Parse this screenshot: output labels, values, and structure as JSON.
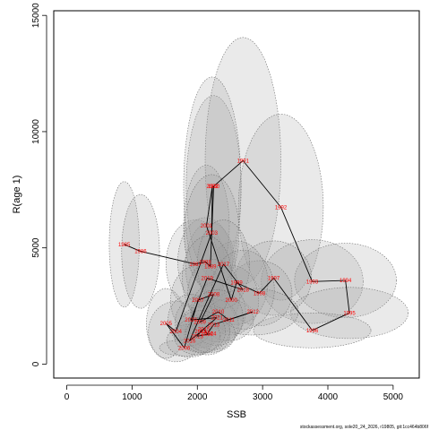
{
  "chart_data": {
    "type": "scatter",
    "xlabel": "SSB",
    "ylabel": "R(age 1)",
    "xlim": [
      -200,
      5400
    ],
    "ylim": [
      -600,
      15200
    ],
    "xticks": [
      0,
      1000,
      2000,
      3000,
      4000,
      5000
    ],
    "yticks": [
      0,
      5000,
      10000,
      15000
    ],
    "x_tick_labels": [
      "0",
      "1000",
      "2000",
      "3000",
      "4000",
      "5000"
    ],
    "y_tick_labels": [
      "0",
      "5000",
      "10000",
      "15000"
    ],
    "grid": false,
    "points": [
      {
        "year": "1985",
        "x": 880,
        "y": 5150
      },
      {
        "year": "1986",
        "x": 1130,
        "y": 4850
      },
      {
        "year": "1987",
        "x": 1970,
        "y": 4300
      },
      {
        "year": "1988",
        "x": 2120,
        "y": 4400
      },
      {
        "year": "1989",
        "x": 2200,
        "y": 4200
      },
      {
        "year": "1990",
        "x": 2250,
        "y": 7650
      },
      {
        "year": "1991",
        "x": 2700,
        "y": 8750
      },
      {
        "year": "1992",
        "x": 3280,
        "y": 6750
      },
      {
        "year": "1993",
        "x": 3760,
        "y": 3550
      },
      {
        "year": "1994",
        "x": 4270,
        "y": 3600
      },
      {
        "year": "1995",
        "x": 4330,
        "y": 2200
      },
      {
        "year": "1996",
        "x": 3760,
        "y": 1450
      },
      {
        "year": "1997",
        "x": 3170,
        "y": 3700
      },
      {
        "year": "1998",
        "x": 2950,
        "y": 3050
      },
      {
        "year": "1999",
        "x": 2600,
        "y": 3500
      },
      {
        "year": "2000",
        "x": 2520,
        "y": 2750
      },
      {
        "year": "2001",
        "x": 2140,
        "y": 5950
      },
      {
        "year": "2002",
        "x": 2230,
        "y": 7650
      },
      {
        "year": "2003",
        "x": 2220,
        "y": 5650
      },
      {
        "year": "2004",
        "x": 1670,
        "y": 1400
      },
      {
        "year": "2005",
        "x": 1520,
        "y": 1750
      },
      {
        "year": "2006",
        "x": 1800,
        "y": 700
      },
      {
        "year": "2007",
        "x": 2010,
        "y": 2750
      },
      {
        "year": "2008",
        "x": 2250,
        "y": 3000
      },
      {
        "year": "2009",
        "x": 2040,
        "y": 1800
      },
      {
        "year": "2010",
        "x": 2320,
        "y": 2250
      },
      {
        "year": "2011",
        "x": 2480,
        "y": 1900
      },
      {
        "year": "2012",
        "x": 2850,
        "y": 2250
      },
      {
        "year": "2013",
        "x": 2250,
        "y": 1700
      },
      {
        "year": "2014",
        "x": 2150,
        "y": 1300
      },
      {
        "year": "2015",
        "x": 2100,
        "y": 1500
      },
      {
        "year": "2016",
        "x": 1880,
        "y": 1000
      },
      {
        "year": "2017",
        "x": 2400,
        "y": 4300
      },
      {
        "year": "2018",
        "x": 2700,
        "y": 3200
      },
      {
        "year": "2019",
        "x": 2150,
        "y": 3700
      },
      {
        "year": "2020",
        "x": 1900,
        "y": 1900
      },
      {
        "year": "2021",
        "x": 2300,
        "y": 2000
      },
      {
        "year": "2022",
        "x": 2050,
        "y": 1400
      },
      {
        "year": "2023",
        "x": 2000,
        "y": 1200
      },
      {
        "year": "2024",
        "x": 2200,
        "y": 1300
      }
    ],
    "path_order": [
      "1985",
      "1986",
      "1987",
      "1988",
      "1989",
      "1990",
      "1991",
      "1992",
      "1993",
      "1994",
      "1995",
      "1996",
      "1997",
      "1998",
      "1999",
      "2000",
      "2001",
      "2002",
      "2003",
      "2004",
      "2005",
      "2006",
      "2007",
      "2008",
      "2009",
      "2010",
      "2011",
      "2012",
      "2013",
      "2014",
      "2015",
      "2016",
      "2017",
      "2018",
      "2019",
      "2020",
      "2021",
      "2022",
      "2023",
      "2024"
    ],
    "uncertainty_ellipses": [
      {
        "year": "1985",
        "rx": 230,
        "ry": 2700
      },
      {
        "year": "1986",
        "rx": 290,
        "ry": 2450
      },
      {
        "year": "1987",
        "rx": 450,
        "ry": 1900
      },
      {
        "year": "1988",
        "rx": 420,
        "ry": 1900
      },
      {
        "year": "1989",
        "rx": 380,
        "ry": 1900
      },
      {
        "year": "1990",
        "rx": 420,
        "ry": 3900
      },
      {
        "year": "1991",
        "rx": 580,
        "ry": 5300
      },
      {
        "year": "1992",
        "rx": 650,
        "ry": 4000
      },
      {
        "year": "1993",
        "rx": 780,
        "ry": 1800
      },
      {
        "year": "1994",
        "rx": 780,
        "ry": 1600
      },
      {
        "year": "1995",
        "rx": 900,
        "ry": 1100
      },
      {
        "year": "1996",
        "rx": 900,
        "ry": 750
      },
      {
        "year": "1997",
        "rx": 580,
        "ry": 1600
      },
      {
        "year": "1998",
        "rx": 500,
        "ry": 1400
      },
      {
        "year": "1999",
        "rx": 480,
        "ry": 1800
      },
      {
        "year": "2000",
        "rx": 420,
        "ry": 1500
      },
      {
        "year": "2001",
        "rx": 350,
        "ry": 2600
      },
      {
        "year": "2002",
        "rx": 440,
        "ry": 4700
      },
      {
        "year": "2003",
        "rx": 420,
        "ry": 2500
      },
      {
        "year": "2004",
        "rx": 420,
        "ry": 1300
      },
      {
        "year": "2005",
        "rx": 300,
        "ry": 1500
      },
      {
        "year": "2006",
        "rx": 380,
        "ry": 350
      },
      {
        "year": "2007",
        "rx": 420,
        "ry": 1500
      },
      {
        "year": "2008",
        "rx": 400,
        "ry": 1500
      },
      {
        "year": "2009",
        "rx": 380,
        "ry": 1100
      },
      {
        "year": "2010",
        "rx": 420,
        "ry": 1300
      },
      {
        "year": "2011",
        "rx": 380,
        "ry": 900
      },
      {
        "year": "2012",
        "rx": 700,
        "ry": 1000
      },
      {
        "year": "2013",
        "rx": 380,
        "ry": 1100
      },
      {
        "year": "2014",
        "rx": 350,
        "ry": 900
      },
      {
        "year": "2015",
        "rx": 400,
        "ry": 1000
      },
      {
        "year": "2016",
        "rx": 350,
        "ry": 700
      },
      {
        "year": "2017",
        "rx": 400,
        "ry": 1900
      },
      {
        "year": "2018",
        "rx": 480,
        "ry": 1700
      },
      {
        "year": "2019",
        "rx": 380,
        "ry": 1800
      },
      {
        "year": "2020",
        "rx": 350,
        "ry": 1100
      },
      {
        "year": "2021",
        "rx": 400,
        "ry": 1200
      },
      {
        "year": "2022",
        "rx": 380,
        "ry": 900
      },
      {
        "year": "2023",
        "rx": 350,
        "ry": 800
      },
      {
        "year": "2024",
        "rx": 380,
        "ry": 800
      }
    ],
    "colors": {
      "ellipse_fill": "#a0a0a0",
      "ellipse_stroke": "#707070",
      "path_line": "#000000",
      "year_label": "#ff0000",
      "axis": "#000000"
    }
  },
  "footer_text": "stockassessment.org, sole20_24_2026, r19805, git:1cc464b806f"
}
